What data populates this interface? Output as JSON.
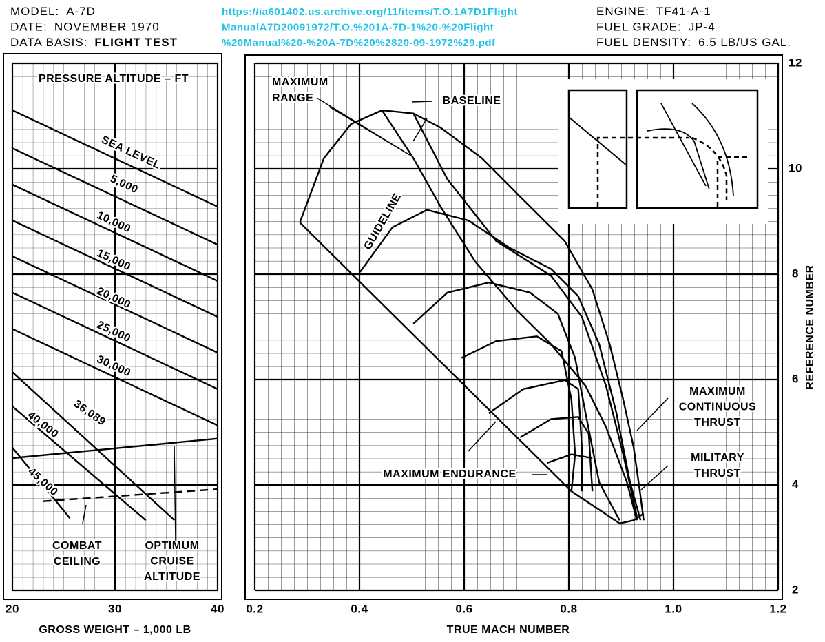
{
  "header": {
    "left": [
      {
        "label": "MODEL:",
        "value": "A-7D"
      },
      {
        "label": "DATE:",
        "value": "NOVEMBER 1970"
      },
      {
        "label": "DATA BASIS:",
        "value": "FLIGHT TEST"
      }
    ],
    "source": [
      "https://ia601402.us.archive.org/11/items/T.O.1A7D1Flight",
      "ManualA7D20091972/T.O.%201A-7D-1%20-%20Flight",
      "%20Manual%20-%20A-7D%20%2820-09-1972%29.pdf"
    ],
    "right": [
      {
        "label": "ENGINE:",
        "value": "TF41-A-1"
      },
      {
        "label": "FUEL GRADE:",
        "value": "JP-4"
      },
      {
        "label": "FUEL DENSITY:",
        "value": "6.5 LB/US GAL."
      }
    ]
  },
  "chart_data": [
    {
      "type": "line",
      "x_label": "GROSS WEIGHT – 1,000 LB",
      "xlim": [
        20,
        40
      ],
      "xticks": [
        20,
        30,
        40
      ],
      "ylim": [
        2,
        12
      ],
      "grid": true,
      "series": [
        {
          "color": "#000",
          "x": [
            20,
            40
          ],
          "values": [
            11.11,
            9.28
          ]
        },
        {
          "color": "#000",
          "x": [
            20,
            40
          ],
          "values": [
            10.39,
            8.56
          ]
        },
        {
          "color": "#000",
          "x": [
            20,
            40
          ],
          "values": [
            9.7,
            7.87
          ]
        },
        {
          "color": "#000",
          "x": [
            20,
            40
          ],
          "values": [
            9.02,
            7.19
          ]
        },
        {
          "color": "#000",
          "x": [
            20,
            40
          ],
          "values": [
            8.34,
            6.51
          ]
        },
        {
          "color": "#000",
          "x": [
            20,
            40
          ],
          "values": [
            7.65,
            5.82
          ]
        },
        {
          "color": "#000",
          "x": [
            20,
            40
          ],
          "values": [
            6.96,
            5.13
          ]
        },
        {
          "color": "#000",
          "x": [
            20,
            35.8
          ],
          "values": [
            6.14,
            3.33
          ]
        },
        {
          "color": "#000",
          "x": [
            20,
            33.0
          ],
          "values": [
            5.49,
            3.33
          ]
        },
        {
          "color": "#000",
          "x": [
            20,
            25.6
          ],
          "values": [
            4.71,
            3.37
          ]
        },
        {
          "color": "#000",
          "x": [
            20,
            40
          ],
          "values": [
            4.51,
            4.88
          ]
        },
        {
          "color": "#000",
          "dashed": true,
          "x": [
            23.0,
            40
          ],
          "values": [
            3.69,
            3.92
          ]
        }
      ],
      "annotations": [
        {
          "text": [
            "PRESSURE ALTITUDE – FT"
          ]
        },
        {
          "text": [
            "SEA LEVEL"
          ]
        },
        {
          "text": [
            "5,000"
          ]
        },
        {
          "text": [
            "10,000"
          ]
        },
        {
          "text": [
            "15,000"
          ]
        },
        {
          "text": [
            "20,000"
          ]
        },
        {
          "text": [
            "25,000"
          ]
        },
        {
          "text": [
            "30,000"
          ]
        },
        {
          "text": [
            "36,089"
          ]
        },
        {
          "text": [
            "40,000"
          ]
        },
        {
          "text": [
            "45,000"
          ]
        },
        {
          "text": [
            "COMBAT",
            "CEILING"
          ]
        },
        {
          "text": [
            "OPTIMUM",
            "CRUISE",
            "ALTITUDE"
          ]
        }
      ]
    },
    {
      "type": "line",
      "x_label": "TRUE MACH NUMBER",
      "y_label": "REFERENCE NUMBER",
      "xlim": [
        0.2,
        1.2
      ],
      "xticks": [
        0.2,
        0.4,
        0.6,
        0.8,
        {
          "value": 1,
          "label": "1.0"
        },
        1.2
      ],
      "ylim": [
        2,
        12
      ],
      "yticks": [
        2,
        4,
        6,
        8,
        10,
        12
      ],
      "grid": true,
      "series": [
        {
          "color": "#000",
          "x": [
            0.286,
            0.332,
            0.384,
            0.443,
            0.503,
            0.555,
            0.634,
            0.713,
            0.792,
            0.845,
            0.878,
            0.904,
            0.924,
            0.937,
            0.943
          ],
          "values": [
            8.98,
            10.2,
            10.85,
            11.11,
            11.05,
            10.78,
            10.2,
            9.41,
            8.63,
            7.71,
            6.67,
            5.62,
            4.71,
            3.79,
            3.33
          ]
        },
        {
          "color": "#000",
          "x": [
            0.286,
            0.805
          ],
          "values": [
            8.98,
            3.88
          ]
        },
        {
          "color": "#000",
          "x": [
            0.805,
            0.858,
            0.897,
            0.924,
            0.943
          ],
          "values": [
            3.88,
            3.53,
            3.27,
            3.33,
            3.46
          ]
        },
        {
          "color": "#000",
          "x": [
            0.443,
            0.503,
            0.555,
            0.621,
            0.7,
            0.766,
            0.832,
            0.871,
            0.911,
            0.93
          ],
          "values": [
            11.11,
            10.2,
            9.28,
            8.24,
            7.32,
            6.67,
            5.88,
            5.1,
            4.05,
            3.33
          ]
        },
        {
          "color": "#000",
          "x": [
            0.503,
            0.568,
            0.661,
            0.766,
            0.825,
            0.871,
            0.904,
            0.93
          ],
          "values": [
            11.05,
            9.8,
            8.63,
            7.97,
            7.19,
            5.88,
            4.58,
            3.4
          ]
        },
        {
          "color": "#000",
          "x": [
            0.401,
            0.463,
            0.529,
            0.608,
            0.687,
            0.766,
            0.818,
            0.858,
            0.891,
            0.917,
            0.937
          ],
          "values": [
            8.04,
            8.89,
            9.22,
            9.02,
            8.5,
            8.1,
            7.58,
            6.67,
            5.36,
            4.05,
            3.33
          ]
        },
        {
          "color": "#000",
          "x": [
            0.503,
            0.568,
            0.647,
            0.726,
            0.779,
            0.812,
            0.832,
            0.858,
            0.897
          ],
          "values": [
            7.06,
            7.65,
            7.84,
            7.65,
            7.25,
            6.41,
            5.36,
            4.05,
            3.33
          ]
        },
        {
          "color": "#000",
          "x": [
            0.595,
            0.661,
            0.739,
            0.786,
            0.805,
            0.812,
            0.805
          ],
          "values": [
            6.41,
            6.73,
            6.82,
            6.54,
            5.62,
            4.58,
            3.88
          ]
        },
        {
          "color": "#000",
          "x": [
            0.647,
            0.713,
            0.792,
            0.818,
            0.825,
            0.825
          ],
          "values": [
            5.36,
            5.82,
            5.99,
            5.82,
            4.71,
            3.88
          ]
        },
        {
          "color": "#000",
          "x": [
            0.707,
            0.766,
            0.818,
            0.838,
            0.845
          ],
          "values": [
            4.9,
            5.25,
            5.29,
            4.97,
            3.88
          ]
        },
        {
          "color": "#000",
          "x": [
            0.759,
            0.805,
            0.845
          ],
          "values": [
            4.42,
            4.58,
            4.51
          ]
        }
      ],
      "annotations": [
        {
          "text": [
            "MAXIMUM",
            "RANGE"
          ]
        },
        {
          "text": [
            "BASELINE"
          ]
        },
        {
          "text": [
            "GUIDELINE"
          ]
        },
        {
          "text": [
            "MAXIMUM ENDURANCE"
          ]
        },
        {
          "text": [
            "MAXIMUM",
            "CONTINUOUS",
            "THRUST"
          ]
        },
        {
          "text": [
            "MILITARY",
            "THRUST"
          ]
        }
      ]
    }
  ]
}
